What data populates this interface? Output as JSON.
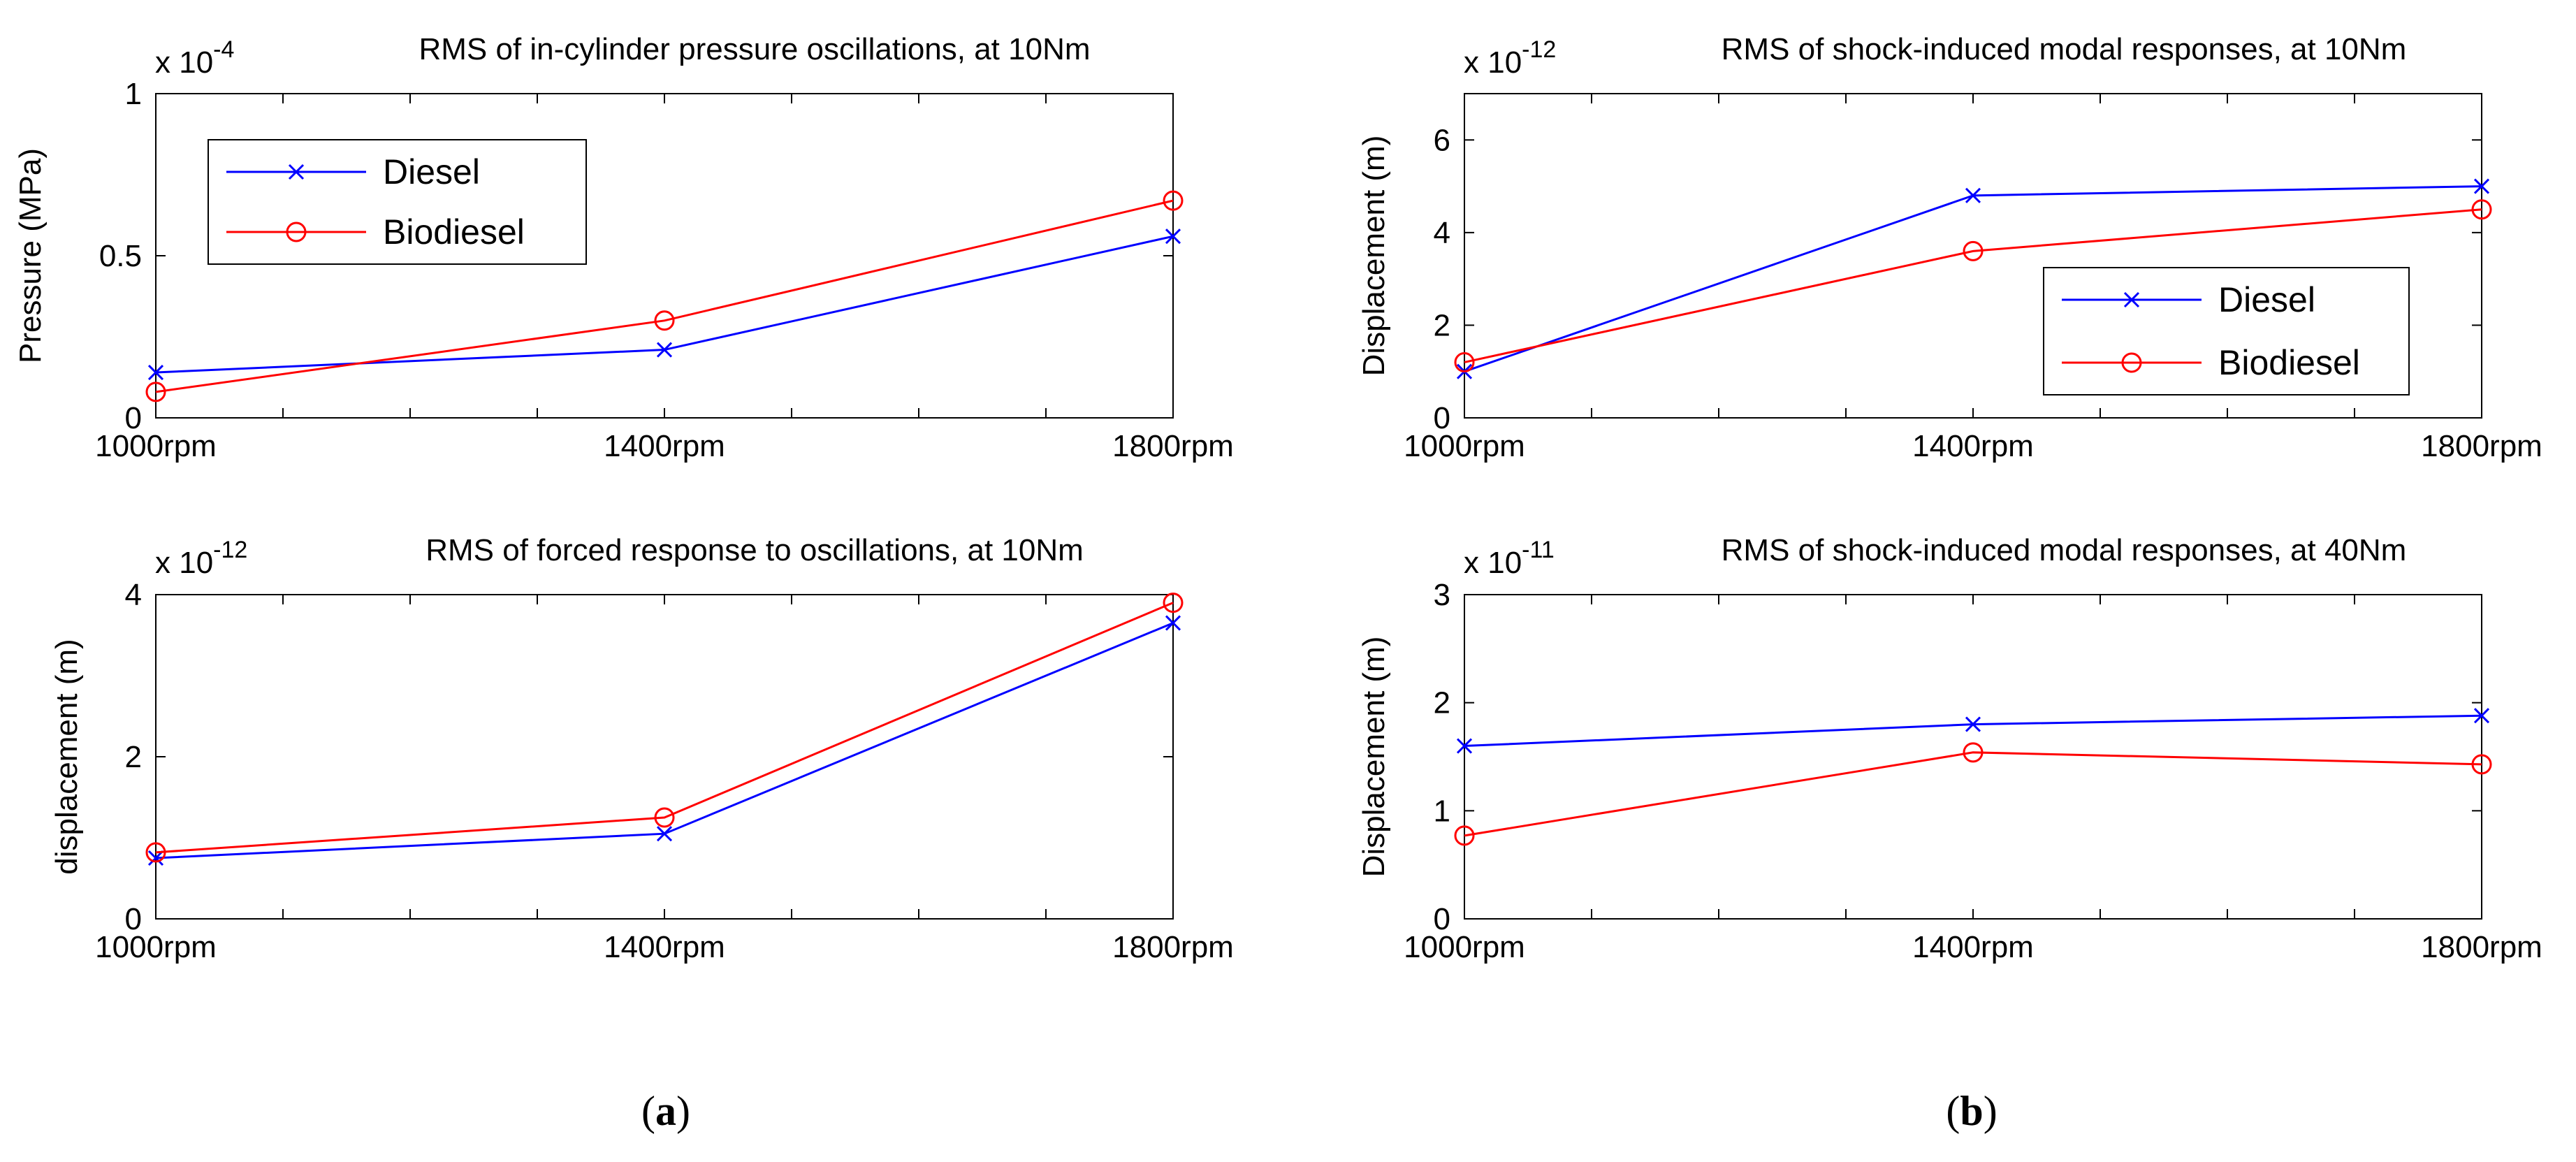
{
  "chart_data": [
    {
      "id": "tl",
      "type": "line",
      "title": "RMS of in-cylinder pressure oscillations, at 10Nm",
      "exponent_base": "x 10",
      "exponent_power": "-4",
      "ylabel": "Pressure (MPa)",
      "xlabel": "",
      "categories": [
        "1000rpm",
        "1400rpm",
        "1800rpm"
      ],
      "ylim": [
        0,
        1
      ],
      "yticks": [
        0,
        0.5,
        1
      ],
      "ytick_labels": [
        "0",
        "0.5",
        "1"
      ],
      "legend_position": "top-left",
      "series": [
        {
          "name": "Diesel",
          "marker": "x",
          "color": "#0000FF",
          "values": [
            0.14,
            0.21,
            0.56
          ]
        },
        {
          "name": "Biodiesel",
          "marker": "o",
          "color": "#FF0000",
          "values": [
            0.08,
            0.3,
            0.67
          ]
        }
      ]
    },
    {
      "id": "tr",
      "type": "line",
      "title": "RMS of shock-induced modal responses, at 10Nm",
      "exponent_base": "x 10",
      "exponent_power": "-12",
      "ylabel": "Displacement (m)",
      "xlabel": "",
      "categories": [
        "1000rpm",
        "1400rpm",
        "1800rpm"
      ],
      "ylim": [
        0,
        7
      ],
      "yticks": [
        0,
        2,
        4,
        6
      ],
      "ytick_labels": [
        "0",
        "2",
        "4",
        "6"
      ],
      "legend_position": "bottom-right",
      "series": [
        {
          "name": "Diesel",
          "marker": "x",
          "color": "#0000FF",
          "values": [
            1.0,
            4.8,
            5.0
          ]
        },
        {
          "name": "Biodiesel",
          "marker": "o",
          "color": "#FF0000",
          "values": [
            1.2,
            3.6,
            4.5
          ]
        }
      ]
    },
    {
      "id": "bl",
      "type": "line",
      "title": "RMS of forced response to oscillations, at 10Nm",
      "exponent_base": "x 10",
      "exponent_power": "-12",
      "ylabel": "displacement (m)",
      "xlabel": "",
      "categories": [
        "1000rpm",
        "1400rpm",
        "1800rpm"
      ],
      "ylim": [
        0,
        4
      ],
      "yticks": [
        0,
        2,
        4
      ],
      "ytick_labels": [
        "0",
        "2",
        "4"
      ],
      "legend_position": "none",
      "series": [
        {
          "name": "Diesel",
          "marker": "x",
          "color": "#0000FF",
          "values": [
            0.75,
            1.05,
            3.65
          ]
        },
        {
          "name": "Biodiesel",
          "marker": "o",
          "color": "#FF0000",
          "values": [
            0.82,
            1.25,
            3.9
          ]
        }
      ]
    },
    {
      "id": "br",
      "type": "line",
      "title": "RMS of shock-induced modal responses, at 40Nm",
      "exponent_base": "x 10",
      "exponent_power": "-11",
      "ylabel": "Displacement (m)",
      "xlabel": "",
      "categories": [
        "1000rpm",
        "1400rpm",
        "1800rpm"
      ],
      "ylim": [
        0,
        3
      ],
      "yticks": [
        0,
        1,
        2,
        3
      ],
      "ytick_labels": [
        "0",
        "1",
        "2",
        "3"
      ],
      "legend_position": "none",
      "series": [
        {
          "name": "Diesel",
          "marker": "x",
          "color": "#0000FF",
          "values": [
            1.6,
            1.8,
            1.88
          ]
        },
        {
          "name": "Biodiesel",
          "marker": "o",
          "color": "#FF0000",
          "values": [
            0.77,
            1.54,
            1.43
          ]
        }
      ]
    }
  ],
  "captions": {
    "a": {
      "open": "(",
      "letter": "a",
      "close": ")"
    },
    "b": {
      "open": "(",
      "letter": "b",
      "close": ")"
    }
  }
}
